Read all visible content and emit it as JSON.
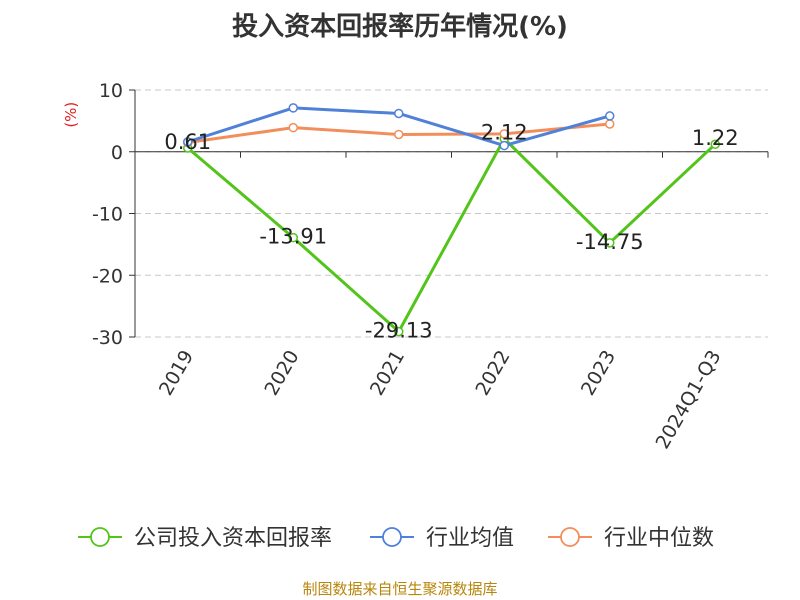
{
  "chart_data": {
    "type": "line",
    "title": "投入资本回报率历年情况(%)",
    "ylabel": "(%)",
    "categories": [
      "2019",
      "2020",
      "2021",
      "2022",
      "2023",
      "2024Q1-Q3"
    ],
    "ylim": [
      -30,
      10
    ],
    "yticks": [
      10,
      0,
      -10,
      -20,
      -30
    ],
    "grid": true,
    "legend_position": "bottom",
    "series": [
      {
        "name": "公司投入资本回报率",
        "color": "#52c41a",
        "values": [
          0.61,
          -13.91,
          -29.13,
          2.12,
          -14.75,
          1.22
        ],
        "labels": [
          "0.61",
          "-13.91",
          "-29.13",
          "2.12",
          "-14.75",
          "1.22"
        ]
      },
      {
        "name": "行业均值",
        "color": "#4f81d9",
        "values": [
          1.6,
          7.1,
          6.2,
          1.0,
          5.8,
          null
        ]
      },
      {
        "name": "行业中位数",
        "color": "#f28e5b",
        "values": [
          1.5,
          3.9,
          2.8,
          2.9,
          4.5,
          null
        ]
      }
    ]
  },
  "source": "制图数据来自恒生聚源数据库"
}
